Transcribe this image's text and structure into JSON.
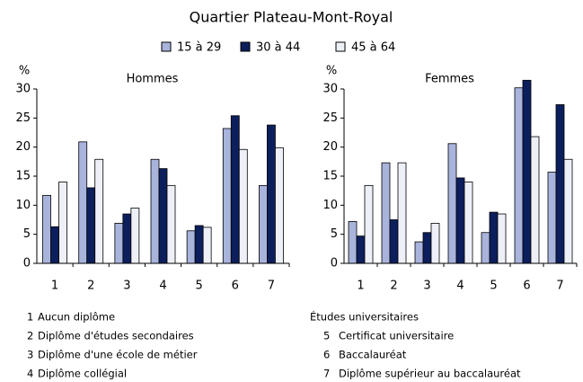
{
  "title": "Quartier Plateau-Mont-Royal",
  "chart_data": [
    {
      "type": "bar",
      "title": "Hommes",
      "y_label": "%",
      "categories": [
        "1",
        "2",
        "3",
        "4",
        "5",
        "6",
        "7"
      ],
      "series": [
        {
          "name": "15 à 29",
          "color": "#a9b4dc",
          "values": [
            11.7,
            20.9,
            6.9,
            17.9,
            5.6,
            23.2,
            13.4
          ]
        },
        {
          "name": "30 à 44",
          "color": "#0c1f5c",
          "values": [
            6.3,
            13.0,
            8.5,
            16.3,
            6.5,
            25.4,
            23.8
          ]
        },
        {
          "name": "45 à 64",
          "color": "#eef0f8",
          "values": [
            14.0,
            17.9,
            9.5,
            13.4,
            6.2,
            19.6,
            19.9
          ]
        }
      ],
      "ylim": [
        0,
        30
      ],
      "yticks": [
        0,
        5,
        10,
        15,
        20,
        25,
        30
      ]
    },
    {
      "type": "bar",
      "title": "Femmes",
      "y_label": "%",
      "categories": [
        "1",
        "2",
        "3",
        "4",
        "5",
        "6",
        "7"
      ],
      "series": [
        {
          "name": "15 à 29",
          "color": "#a9b4dc",
          "values": [
            7.2,
            17.3,
            3.7,
            20.6,
            5.3,
            30.2,
            15.7
          ]
        },
        {
          "name": "30 à 44",
          "color": "#0c1f5c",
          "values": [
            4.7,
            7.5,
            5.3,
            14.7,
            8.8,
            31.5,
            27.3
          ]
        },
        {
          "name": "45 à 64",
          "color": "#eef0f8",
          "values": [
            13.4,
            17.3,
            6.9,
            14.0,
            8.5,
            21.8,
            17.9
          ]
        }
      ],
      "ylim": [
        0,
        30
      ],
      "yticks": [
        0,
        5,
        10,
        15,
        20,
        25,
        30
      ]
    }
  ],
  "notes": {
    "left": [
      {
        "key": "1",
        "label": "Aucun diplôme"
      },
      {
        "key": "2",
        "label": "Diplôme d'études secondaires"
      },
      {
        "key": "3",
        "label": "Diplôme d'une école de métier"
      },
      {
        "key": "4",
        "label": "Diplôme collégial"
      }
    ],
    "right_heading": "Études universitaires",
    "right": [
      {
        "key": "5",
        "label": "Certificat universitaire"
      },
      {
        "key": "6",
        "label": "Baccalauréat"
      },
      {
        "key": "7",
        "label": "Diplôme supérieur au baccalauréat"
      }
    ]
  }
}
